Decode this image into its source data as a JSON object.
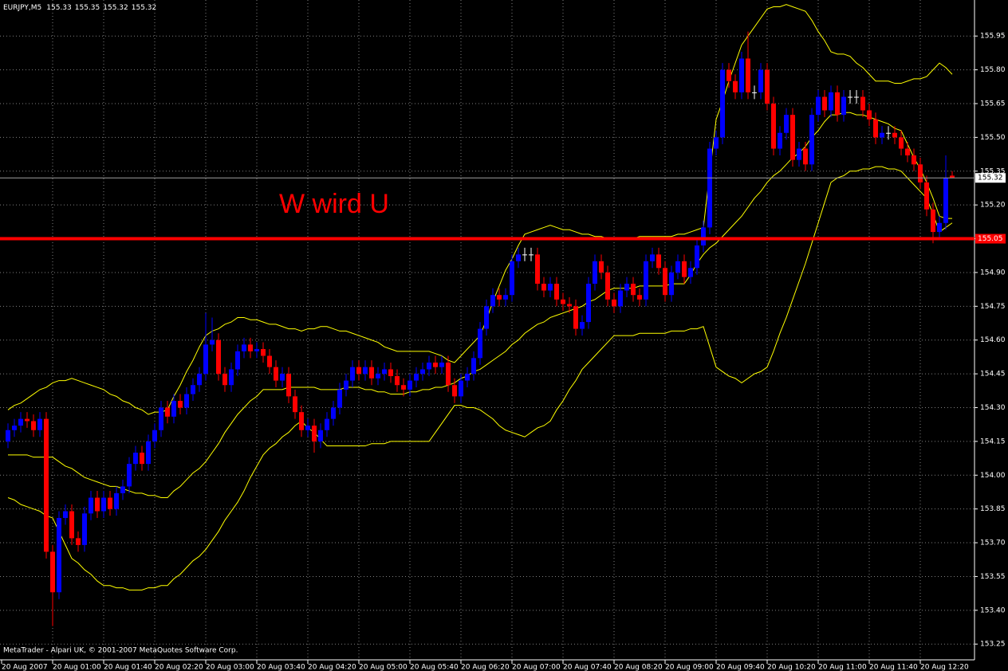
{
  "chart_data": {
    "type": "candlestick",
    "title": "EURJPY,M5",
    "annotation": "W wird U",
    "footer": "MetaTrader - Alpari UK, © 2001-2007 MetaQuotes Software Corp.",
    "background": "#000000",
    "grid": true,
    "grid_color": "#7f7f7f",
    "up_color": "#0000ff",
    "down_color": "#ff0000",
    "doji_color": "#ffffff",
    "ylim": [
      153.18,
      156.11
    ],
    "yticks": [
      153.25,
      {
        "value": 153.4,
        "label": "153.40"
      },
      153.55,
      {
        "value": 153.7,
        "label": "153.70"
      },
      153.85,
      {
        "value": 154,
        "label": "154.00"
      },
      154.15,
      {
        "value": 154.3,
        "label": "154.30"
      },
      154.45,
      {
        "value": 154.6,
        "label": "154.60"
      },
      154.75,
      {
        "value": 154.9,
        "label": "154.90"
      },
      155.05,
      {
        "value": 155.2,
        "label": "155.20"
      },
      155.35,
      {
        "value": 155.5,
        "label": "155.50"
      },
      155.65,
      {
        "value": 155.8,
        "label": "155.80"
      },
      155.95
    ],
    "categories": [
      "20 Aug 2007",
      null,
      null,
      null,
      null,
      null,
      null,
      "20 Aug 01:00",
      null,
      null,
      null,
      null,
      null,
      null,
      null,
      "20 Aug 01:40",
      null,
      null,
      null,
      null,
      null,
      null,
      null,
      "20 Aug 02:20",
      null,
      null,
      null,
      null,
      null,
      null,
      null,
      "20 Aug 03:00",
      null,
      null,
      null,
      null,
      null,
      null,
      null,
      "20 Aug 03:40",
      null,
      null,
      null,
      null,
      null,
      null,
      null,
      "20 Aug 04:20",
      null,
      null,
      null,
      null,
      null,
      null,
      null,
      "20 Aug 05:00",
      null,
      null,
      null,
      null,
      null,
      null,
      null,
      "20 Aug 05:40",
      null,
      null,
      null,
      null,
      null,
      null,
      null,
      "20 Aug 06:20",
      null,
      null,
      null,
      null,
      null,
      null,
      null,
      "20 Aug 07:00",
      null,
      null,
      null,
      null,
      null,
      null,
      null,
      "20 Aug 07:40",
      null,
      null,
      null,
      null,
      null,
      null,
      null,
      "20 Aug 08:20",
      null,
      null,
      null,
      null,
      null,
      null,
      null,
      "20 Aug 09:00",
      null,
      null,
      null,
      null,
      null,
      null,
      null,
      "20 Aug 09:40",
      null,
      null,
      null,
      null,
      null,
      null,
      null,
      "20 Aug 10:20",
      null,
      null,
      null,
      null,
      null,
      null,
      null,
      "20 Aug 11:00",
      null,
      null,
      null,
      null,
      null,
      null,
      null,
      "20 Aug 11:40",
      null,
      null,
      null,
      null,
      null,
      null,
      null,
      "20 Aug 12:20",
      null,
      null,
      null,
      null,
      null
    ],
    "open": [
      154.15,
      154.2,
      154.22,
      154.25,
      154.24,
      154.2,
      154.25,
      153.66,
      153.48,
      153.81,
      153.84,
      153.72,
      153.69,
      153.83,
      153.9,
      153.84,
      153.9,
      153.85,
      153.92,
      153.95,
      154.05,
      154.1,
      154.05,
      154.15,
      154.2,
      154.3,
      154.26,
      154.33,
      154.3,
      154.36,
      154.4,
      154.45,
      154.58,
      154.6,
      154.45,
      154.4,
      154.47,
      154.55,
      154.58,
      154.55,
      154.56,
      154.53,
      154.48,
      154.42,
      154.45,
      154.35,
      154.28,
      154.2,
      154.22,
      154.15,
      154.2,
      154.25,
      154.3,
      154.38,
      154.42,
      154.48,
      154.45,
      154.48,
      154.43,
      154.45,
      154.47,
      154.44,
      154.4,
      154.38,
      154.42,
      154.45,
      154.47,
      154.5,
      154.48,
      154.5,
      154.4,
      154.35,
      154.42,
      154.45,
      154.52,
      154.65,
      154.75,
      154.8,
      154.78,
      154.8,
      154.95,
      154.98,
      154.98,
      154.98,
      154.85,
      154.82,
      154.85,
      154.78,
      154.76,
      154.75,
      154.65,
      154.68,
      154.85,
      154.95,
      154.9,
      154.78,
      154.75,
      154.82,
      154.85,
      154.8,
      154.78,
      154.95,
      154.98,
      154.92,
      154.8,
      154.9,
      154.95,
      154.88,
      154.92,
      155.02,
      155.1,
      155.45,
      155.5,
      155.8,
      155.75,
      155.7,
      155.85,
      155.7,
      155.7,
      155.8,
      155.65,
      155.45,
      155.52,
      155.6,
      155.4,
      155.45,
      155.38,
      155.6,
      155.68,
      155.62,
      155.7,
      155.6,
      155.68,
      155.68,
      155.68,
      155.62,
      155.58,
      155.5,
      155.52,
      155.52,
      155.5,
      155.45,
      155.42,
      155.38,
      155.3,
      155.18,
      155.08,
      155.12,
      155.33
    ],
    "high": [
      154.23,
      154.25,
      154.28,
      154.28,
      154.27,
      154.28,
      154.28,
      153.69,
      153.84,
      153.87,
      153.87,
      153.75,
      153.86,
      153.93,
      153.93,
      153.93,
      153.93,
      153.95,
      153.98,
      154.08,
      154.13,
      154.13,
      154.18,
      154.23,
      154.33,
      154.33,
      154.36,
      154.36,
      154.39,
      154.43,
      154.48,
      154.72,
      154.7,
      154.63,
      154.48,
      154.5,
      154.58,
      154.61,
      154.61,
      154.59,
      154.59,
      154.56,
      154.51,
      154.48,
      154.48,
      154.38,
      154.31,
      154.25,
      154.25,
      154.23,
      154.28,
      154.33,
      154.41,
      154.45,
      154.51,
      154.51,
      154.51,
      154.51,
      154.48,
      154.5,
      154.5,
      154.47,
      154.43,
      154.45,
      154.48,
      154.5,
      154.53,
      154.53,
      154.53,
      154.53,
      154.43,
      154.45,
      154.48,
      154.55,
      154.68,
      154.78,
      154.83,
      154.83,
      154.83,
      154.98,
      155.01,
      155.01,
      155.01,
      155.01,
      154.88,
      154.88,
      154.88,
      154.81,
      154.79,
      154.78,
      154.71,
      154.88,
      154.98,
      154.98,
      154.93,
      154.81,
      154.85,
      154.88,
      154.88,
      154.83,
      154.98,
      155.01,
      155.01,
      154.95,
      154.93,
      154.98,
      154.98,
      154.95,
      155.05,
      155.13,
      155.48,
      155.53,
      155.83,
      155.83,
      155.78,
      155.88,
      155.97,
      155.73,
      155.83,
      155.83,
      155.68,
      155.55,
      155.63,
      155.63,
      155.48,
      155.48,
      155.63,
      155.71,
      155.71,
      155.73,
      155.73,
      155.71,
      155.71,
      155.71,
      155.71,
      155.65,
      155.61,
      155.55,
      155.55,
      155.55,
      155.53,
      155.48,
      155.45,
      155.41,
      155.33,
      155.21,
      155.15,
      155.42,
      155.35
    ],
    "low": [
      154.12,
      154.17,
      154.19,
      154.21,
      154.17,
      154.17,
      153.63,
      153.33,
      153.45,
      153.78,
      153.69,
      153.66,
      153.66,
      153.8,
      153.81,
      153.81,
      153.82,
      153.82,
      153.89,
      153.92,
      154.02,
      154.02,
      154.02,
      154.12,
      154.17,
      154.23,
      154.23,
      154.27,
      154.27,
      154.33,
      154.37,
      154.42,
      154.55,
      154.42,
      154.37,
      154.37,
      154.44,
      154.52,
      154.52,
      154.52,
      154.5,
      154.45,
      154.39,
      154.39,
      154.32,
      154.25,
      154.17,
      154.17,
      154.1,
      154.12,
      154.17,
      154.22,
      154.27,
      154.35,
      154.39,
      154.42,
      154.42,
      154.4,
      154.4,
      154.42,
      154.41,
      154.37,
      154.35,
      154.35,
      154.39,
      154.42,
      154.44,
      154.45,
      154.45,
      154.37,
      154.32,
      154.32,
      154.39,
      154.42,
      154.49,
      154.62,
      154.72,
      154.75,
      154.75,
      154.77,
      154.92,
      154.95,
      154.95,
      154.82,
      154.79,
      154.79,
      154.75,
      154.73,
      154.72,
      154.62,
      154.62,
      154.65,
      154.82,
      154.87,
      154.75,
      154.72,
      154.72,
      154.79,
      154.77,
      154.75,
      154.75,
      154.92,
      154.89,
      154.77,
      154.77,
      154.87,
      154.85,
      154.85,
      154.89,
      154.99,
      155.07,
      155.42,
      155.47,
      155.72,
      155.67,
      155.67,
      155.67,
      155.67,
      155.67,
      155.62,
      155.42,
      155.42,
      155.49,
      155.37,
      155.37,
      155.35,
      155.35,
      155.57,
      155.59,
      155.59,
      155.57,
      155.57,
      155.65,
      155.65,
      155.59,
      155.55,
      155.47,
      155.47,
      155.49,
      155.47,
      155.42,
      155.39,
      155.35,
      155.27,
      155.15,
      155.03,
      155.05,
      155.09,
      155.32
    ],
    "close": [
      154.2,
      154.22,
      154.25,
      154.24,
      154.2,
      154.25,
      153.66,
      153.48,
      153.81,
      153.84,
      153.72,
      153.69,
      153.83,
      153.9,
      153.84,
      153.9,
      153.85,
      153.92,
      153.95,
      154.05,
      154.1,
      154.05,
      154.15,
      154.2,
      154.3,
      154.26,
      154.33,
      154.3,
      154.36,
      154.4,
      154.45,
      154.58,
      154.6,
      154.45,
      154.4,
      154.47,
      154.55,
      154.58,
      154.55,
      154.56,
      154.53,
      154.48,
      154.42,
      154.45,
      154.35,
      154.28,
      154.2,
      154.22,
      154.15,
      154.2,
      154.25,
      154.3,
      154.38,
      154.42,
      154.48,
      154.45,
      154.48,
      154.43,
      154.45,
      154.47,
      154.44,
      154.4,
      154.38,
      154.42,
      154.45,
      154.47,
      154.5,
      154.48,
      154.5,
      154.4,
      154.35,
      154.42,
      154.45,
      154.52,
      154.65,
      154.75,
      154.8,
      154.78,
      154.8,
      154.95,
      154.98,
      154.98,
      154.98,
      154.85,
      154.82,
      154.85,
      154.78,
      154.76,
      154.75,
      154.65,
      154.68,
      154.85,
      154.95,
      154.9,
      154.78,
      154.75,
      154.82,
      154.85,
      154.8,
      154.78,
      154.95,
      154.98,
      154.92,
      154.8,
      154.9,
      154.95,
      154.88,
      154.92,
      155.02,
      155.1,
      155.45,
      155.5,
      155.8,
      155.75,
      155.7,
      155.85,
      155.7,
      155.7,
      155.8,
      155.65,
      155.45,
      155.52,
      155.6,
      155.4,
      155.45,
      155.38,
      155.6,
      155.68,
      155.62,
      155.7,
      155.6,
      155.68,
      155.68,
      155.68,
      155.62,
      155.58,
      155.5,
      155.52,
      155.52,
      155.5,
      155.45,
      155.42,
      155.38,
      155.3,
      155.18,
      155.08,
      155.12,
      155.32,
      155.32
    ],
    "series": [
      {
        "color": "#ffff00",
        "values": [
          154.29,
          154.31,
          154.32,
          154.34,
          154.36,
          154.38,
          154.39,
          154.41,
          154.42,
          154.42,
          154.43,
          154.42,
          154.41,
          154.4,
          154.39,
          154.38,
          154.36,
          154.35,
          154.33,
          154.32,
          154.3,
          154.29,
          154.27,
          154.28,
          154.28,
          154.29,
          154.35,
          154.4,
          154.46,
          154.51,
          154.57,
          154.62,
          154.64,
          154.65,
          154.67,
          154.68,
          154.7,
          154.7,
          154.69,
          154.69,
          154.68,
          154.67,
          154.67,
          154.66,
          154.65,
          154.65,
          154.64,
          154.65,
          154.65,
          154.66,
          154.66,
          154.65,
          154.64,
          154.64,
          154.63,
          154.62,
          154.61,
          154.6,
          154.59,
          154.57,
          154.56,
          154.55,
          154.55,
          154.55,
          154.55,
          154.55,
          154.55,
          154.54,
          154.53,
          154.51,
          154.5,
          154.53,
          154.56,
          154.59,
          154.62,
          154.69,
          154.77,
          154.84,
          154.91,
          154.96,
          155.02,
          155.07,
          155.08,
          155.09,
          155.1,
          155.11,
          155.1,
          155.09,
          155.09,
          155.08,
          155.07,
          155.07,
          155.06,
          155.06,
          155.05,
          155.05,
          155.05,
          155.05,
          155.05,
          155.06,
          155.06,
          155.06,
          155.06,
          155.06,
          155.06,
          155.07,
          155.07,
          155.08,
          155.09,
          155.1,
          155.34,
          155.58,
          155.66,
          155.75,
          155.83,
          155.91,
          155.95,
          155.99,
          156.03,
          156.07,
          156.08,
          156.08,
          156.09,
          156.08,
          156.07,
          156.06,
          156.02,
          155.97,
          155.93,
          155.88,
          155.87,
          155.87,
          155.86,
          155.83,
          155.81,
          155.78,
          155.75,
          155.75,
          155.75,
          155.74,
          155.74,
          155.75,
          155.76,
          155.76,
          155.77,
          155.8,
          155.83,
          155.81,
          155.78
        ]
      },
      {
        "color": "#ffff00",
        "values": [
          154.09,
          154.09,
          154.09,
          154.09,
          154.08,
          154.08,
          154.08,
          154.08,
          154.06,
          154.04,
          154.03,
          154.01,
          153.99,
          153.98,
          153.97,
          153.96,
          153.95,
          153.95,
          153.94,
          153.93,
          153.92,
          153.92,
          153.91,
          153.91,
          153.9,
          153.9,
          153.93,
          153.95,
          153.98,
          154.01,
          154.03,
          154.06,
          154.1,
          154.14,
          154.19,
          154.23,
          154.27,
          154.3,
          154.33,
          154.35,
          154.38,
          154.38,
          154.38,
          154.38,
          154.39,
          154.39,
          154.39,
          154.39,
          154.39,
          154.38,
          154.38,
          154.38,
          154.38,
          154.39,
          154.39,
          154.39,
          154.38,
          154.38,
          154.37,
          154.37,
          154.36,
          154.36,
          154.36,
          154.37,
          154.37,
          154.38,
          154.38,
          154.39,
          154.39,
          154.4,
          154.41,
          154.43,
          154.44,
          154.46,
          154.47,
          154.49,
          154.51,
          154.53,
          154.55,
          154.58,
          154.6,
          154.63,
          154.65,
          154.67,
          154.68,
          154.7,
          154.71,
          154.72,
          154.73,
          154.74,
          154.75,
          154.77,
          154.78,
          154.8,
          154.82,
          154.83,
          154.83,
          154.83,
          154.83,
          154.84,
          154.84,
          154.84,
          154.84,
          154.84,
          154.85,
          154.85,
          154.85,
          154.89,
          154.94,
          154.98,
          155.01,
          155.03,
          155.06,
          155.09,
          155.12,
          155.15,
          155.19,
          155.23,
          155.26,
          155.3,
          155.33,
          155.35,
          155.38,
          155.41,
          155.43,
          155.46,
          155.5,
          155.53,
          155.57,
          155.6,
          155.6,
          155.61,
          155.61,
          155.6,
          155.6,
          155.59,
          155.58,
          155.57,
          155.56,
          155.54,
          155.53,
          155.47,
          155.41,
          155.36,
          155.3,
          155.23,
          155.15,
          155.14,
          155.14
        ]
      },
      {
        "color": "#ffff00",
        "values": [
          153.9,
          153.89,
          153.87,
          153.86,
          153.85,
          153.84,
          153.82,
          153.81,
          153.75,
          153.69,
          153.63,
          153.61,
          153.58,
          153.56,
          153.53,
          153.51,
          153.51,
          153.5,
          153.5,
          153.49,
          153.49,
          153.49,
          153.5,
          153.5,
          153.51,
          153.51,
          153.54,
          153.56,
          153.59,
          153.62,
          153.64,
          153.67,
          153.71,
          153.75,
          153.8,
          153.84,
          153.88,
          153.93,
          153.99,
          154.04,
          154.09,
          154.12,
          154.14,
          154.17,
          154.19,
          154.22,
          154.24,
          154.21,
          154.19,
          154.16,
          154.13,
          154.13,
          154.13,
          154.13,
          154.13,
          154.13,
          154.13,
          154.14,
          154.14,
          154.14,
          154.15,
          154.15,
          154.15,
          154.15,
          154.15,
          154.15,
          154.15,
          154.19,
          154.23,
          154.27,
          154.31,
          154.31,
          154.3,
          154.3,
          154.29,
          154.27,
          154.25,
          154.22,
          154.2,
          154.19,
          154.18,
          154.17,
          154.19,
          154.21,
          154.22,
          154.24,
          154.29,
          154.33,
          154.38,
          154.42,
          154.47,
          154.5,
          154.53,
          154.56,
          154.59,
          154.62,
          154.62,
          154.62,
          154.62,
          154.63,
          154.63,
          154.63,
          154.63,
          154.63,
          154.64,
          154.64,
          154.64,
          154.65,
          154.65,
          154.66,
          154.57,
          154.48,
          154.46,
          154.44,
          154.43,
          154.41,
          154.43,
          154.45,
          154.46,
          154.48,
          154.55,
          154.63,
          154.7,
          154.78,
          154.86,
          154.94,
          155.03,
          155.12,
          155.21,
          155.3,
          155.32,
          155.33,
          155.35,
          155.35,
          155.36,
          155.36,
          155.37,
          155.37,
          155.36,
          155.36,
          155.35,
          155.32,
          155.29,
          155.26,
          155.23,
          155.16,
          155.08,
          155.1,
          155.12
        ]
      }
    ],
    "lines": [
      {
        "value": 155.05,
        "color": "#ff0000"
      }
    ]
  }
}
